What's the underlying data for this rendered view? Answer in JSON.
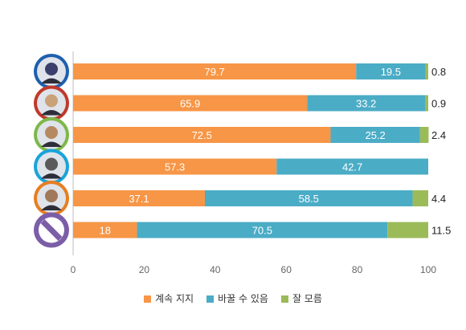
{
  "chart_data": {
    "type": "bar",
    "orientation": "horizontal",
    "stacked": true,
    "categories": [
      "candidate-1",
      "candidate-2",
      "candidate-3",
      "candidate-4",
      "candidate-5",
      "none"
    ],
    "series": [
      {
        "name": "계속 지지",
        "color": "#F79646",
        "values": [
          79.7,
          65.9,
          72.5,
          57.3,
          37.1,
          18
        ]
      },
      {
        "name": "바꿀 수 있음",
        "color": "#4BACC6",
        "values": [
          19.5,
          33.2,
          25.2,
          42.7,
          58.5,
          70.5
        ]
      },
      {
        "name": "잘 모름",
        "color": "#9BBB59",
        "values": [
          0.8,
          0.9,
          2.4,
          0,
          4.4,
          11.5
        ]
      }
    ],
    "labels": [
      [
        "79.7",
        "19.5",
        "0.8"
      ],
      [
        "65.9",
        "33.2",
        "0.9"
      ],
      [
        "72.5",
        "25.2",
        "2.4"
      ],
      [
        "57.3",
        "42.7",
        ""
      ],
      [
        "37.1",
        "58.5",
        "4.4"
      ],
      [
        "18",
        "70.5",
        "11.5"
      ]
    ],
    "xlim": [
      0,
      100
    ],
    "xticks": [
      "0",
      "20",
      "40",
      "60",
      "80",
      "100"
    ],
    "legend_position": "bottom",
    "grid": false,
    "avatar_ring_colors": [
      "#1F5FAF",
      "#C0392B",
      "#7DB84A",
      "#1AA3D9",
      "#E67E22",
      "#7B5EA7"
    ]
  }
}
